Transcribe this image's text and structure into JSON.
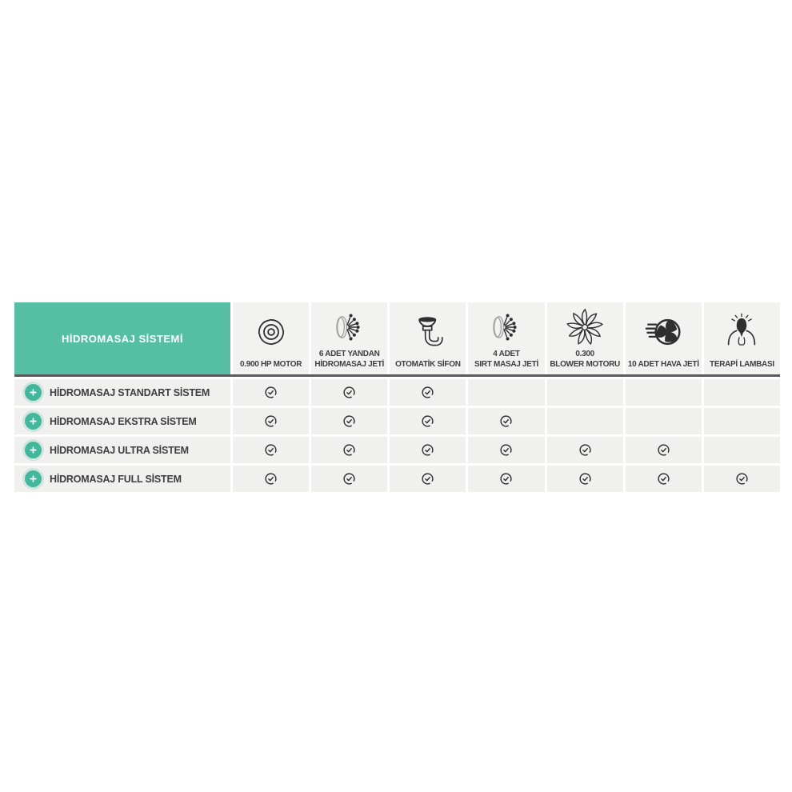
{
  "header": {
    "title": "HİDROMASAJ SİSTEMİ",
    "columns": [
      {
        "icon": "motor-icon",
        "label": "0.900 HP MOTOR"
      },
      {
        "icon": "hydro-jet-icon",
        "label": "6 ADET YANDAN\nHİDROMASAJ JETİ"
      },
      {
        "icon": "siphon-icon",
        "label": "OTOMATİK SİFON"
      },
      {
        "icon": "back-jet-icon",
        "label": "4 ADET\nSIRT MASAJ JETİ"
      },
      {
        "icon": "blower-icon",
        "label": "0.300\nBLOWER MOTORU"
      },
      {
        "icon": "air-jet-icon",
        "label": "10 ADET HAVA JETİ"
      },
      {
        "icon": "therapy-lamp-icon",
        "label": "TERAPİ LAMBASI"
      }
    ]
  },
  "rows": [
    {
      "label": "HİDROMASAJ STANDART SİSTEM",
      "features": [
        true,
        true,
        true,
        false,
        false,
        false,
        false
      ]
    },
    {
      "label": "HİDROMASAJ EKSTRA SİSTEM",
      "features": [
        true,
        true,
        true,
        true,
        false,
        false,
        false
      ]
    },
    {
      "label": "HİDROMASAJ ULTRA SİSTEM",
      "features": [
        true,
        true,
        true,
        true,
        true,
        true,
        false
      ]
    },
    {
      "label": "HİDROMASAJ FULL SİSTEM",
      "features": [
        true,
        true,
        true,
        true,
        true,
        true,
        true
      ]
    }
  ],
  "icons": {
    "included_marker": "check-icon",
    "row_expander": "plus-icon"
  },
  "colors": {
    "accent": "#56bfa3",
    "expand_button": "#43b79c",
    "header_cell_bg": "#f2f2f1",
    "row_cell_bg": "#f0f0ef",
    "divider": "#595a5e",
    "text": "#3e3e40",
    "title_text": "#ffffff"
  }
}
